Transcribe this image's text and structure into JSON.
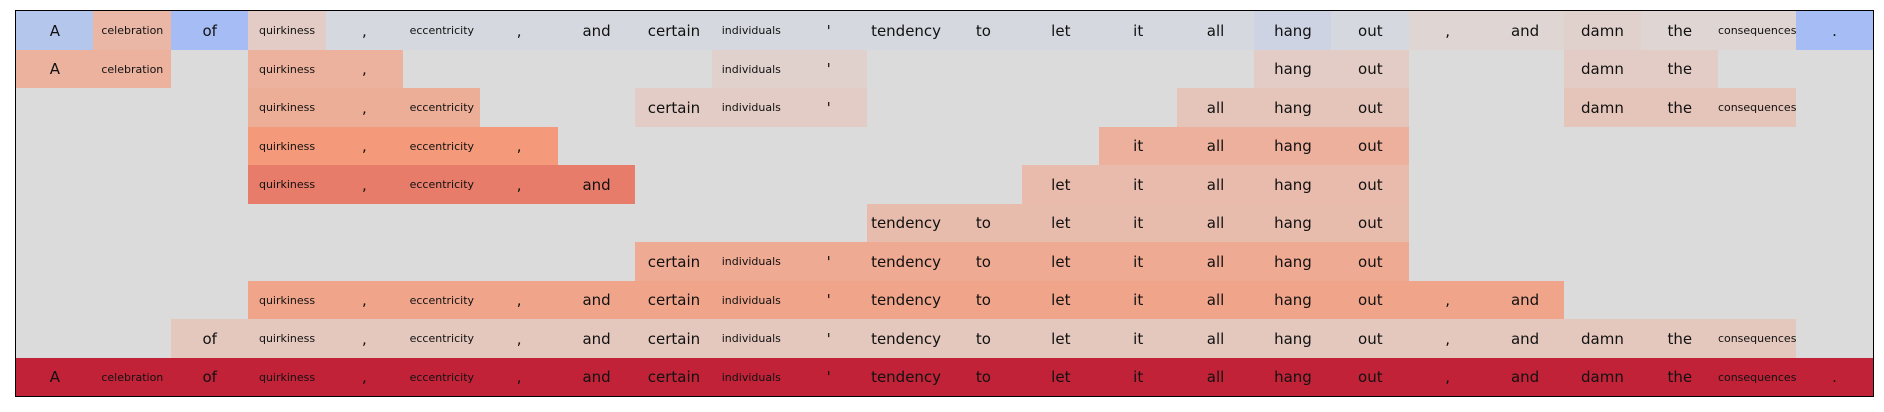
{
  "chart_data": {
    "type": "heatmap",
    "tokens": [
      "A",
      "celebration",
      "of",
      "quirkiness",
      ",",
      "eccentricity",
      ",",
      "and",
      "certain",
      "individuals",
      "'",
      "tendency",
      "to",
      "let",
      "it",
      "all",
      "hang",
      "out",
      ",",
      "and",
      "damn",
      "the",
      "consequences",
      "."
    ],
    "rows": [
      [
        -0.25,
        0.28,
        -0.35,
        0.12,
        -0.05,
        -0.05,
        -0.05,
        -0.05,
        -0.05,
        -0.05,
        -0.05,
        -0.05,
        -0.05,
        -0.05,
        -0.05,
        -0.05,
        -0.1,
        -0.05,
        0.05,
        0.05,
        0.08,
        0.05,
        0.05,
        -0.35
      ],
      [
        0.32,
        0.32,
        null,
        0.32,
        0.32,
        null,
        null,
        null,
        null,
        0.08,
        0.08,
        null,
        null,
        null,
        null,
        null,
        0.12,
        0.12,
        null,
        null,
        0.12,
        0.12,
        null,
        null
      ],
      [
        null,
        null,
        null,
        0.35,
        0.35,
        0.35,
        null,
        null,
        0.12,
        0.12,
        0.12,
        null,
        null,
        null,
        null,
        0.18,
        0.18,
        0.18,
        null,
        null,
        0.18,
        0.18,
        0.18,
        null
      ],
      [
        null,
        null,
        null,
        0.5,
        0.5,
        0.5,
        0.5,
        null,
        null,
        null,
        null,
        null,
        null,
        null,
        0.33,
        0.33,
        0.33,
        0.33,
        null,
        null,
        null,
        null,
        null,
        null
      ],
      [
        null,
        null,
        null,
        0.6,
        0.6,
        0.6,
        0.6,
        0.6,
        null,
        null,
        null,
        null,
        null,
        0.25,
        0.25,
        0.25,
        0.25,
        0.25,
        null,
        null,
        null,
        null,
        null,
        null
      ],
      [
        null,
        null,
        null,
        null,
        null,
        null,
        null,
        null,
        null,
        null,
        null,
        0.24,
        0.24,
        0.24,
        0.24,
        0.24,
        0.24,
        0.24,
        null,
        null,
        null,
        null,
        null,
        null
      ],
      [
        null,
        null,
        null,
        null,
        null,
        null,
        null,
        null,
        0.38,
        0.38,
        0.38,
        0.38,
        0.38,
        0.38,
        0.38,
        0.38,
        0.38,
        0.38,
        null,
        null,
        null,
        null,
        null,
        null
      ],
      [
        null,
        null,
        null,
        0.42,
        0.42,
        0.42,
        0.42,
        0.42,
        0.42,
        0.42,
        0.42,
        0.42,
        0.42,
        0.42,
        0.42,
        0.42,
        0.42,
        0.42,
        0.42,
        0.42,
        null,
        null,
        null,
        null
      ],
      [
        null,
        null,
        0.16,
        0.16,
        0.16,
        0.16,
        0.16,
        0.16,
        0.16,
        0.16,
        0.16,
        0.16,
        0.16,
        0.16,
        0.16,
        0.16,
        0.16,
        0.16,
        0.16,
        0.16,
        0.16,
        0.16,
        0.16,
        null
      ],
      [
        0.9,
        0.9,
        0.9,
        0.9,
        0.9,
        0.9,
        0.9,
        0.9,
        0.9,
        0.9,
        0.9,
        0.9,
        0.9,
        0.9,
        0.9,
        0.9,
        0.9,
        0.9,
        0.9,
        0.9,
        0.9,
        0.9,
        0.9,
        0.9
      ]
    ],
    "colormap": "coolwarm",
    "value_range": [
      -1,
      1
    ],
    "empty_color": "#dcdbdb",
    "grid": false
  }
}
